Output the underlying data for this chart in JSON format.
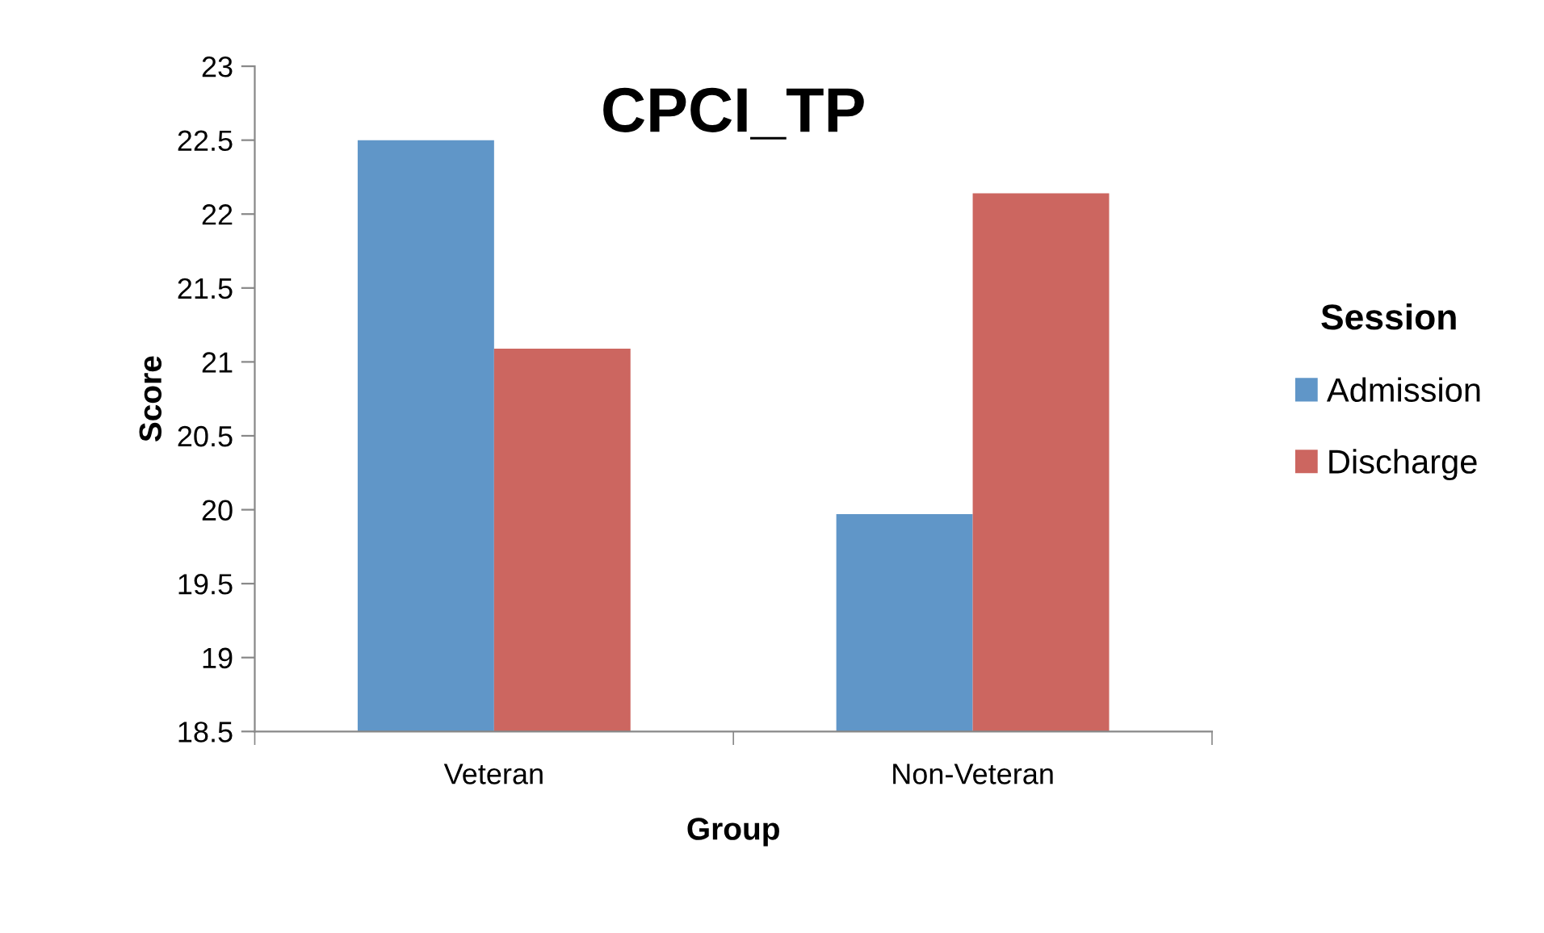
{
  "chart_data": {
    "type": "bar",
    "title": "CPCI_TP",
    "xlabel": "Group",
    "ylabel": "Score",
    "legend_title": "Session",
    "categories": [
      "Veteran",
      "Non-Veteran"
    ],
    "series": [
      {
        "name": "Admission",
        "color": "#6096c8",
        "values": [
          22.5,
          19.97
        ]
      },
      {
        "name": "Discharge",
        "color": "#cc6660",
        "values": [
          21.09,
          22.14
        ]
      }
    ],
    "ylim": [
      18.5,
      23
    ],
    "yticks": [
      18.5,
      19,
      19.5,
      20,
      20.5,
      21,
      21.5,
      22,
      22.5,
      23
    ],
    "grid": false,
    "legend": "right"
  }
}
